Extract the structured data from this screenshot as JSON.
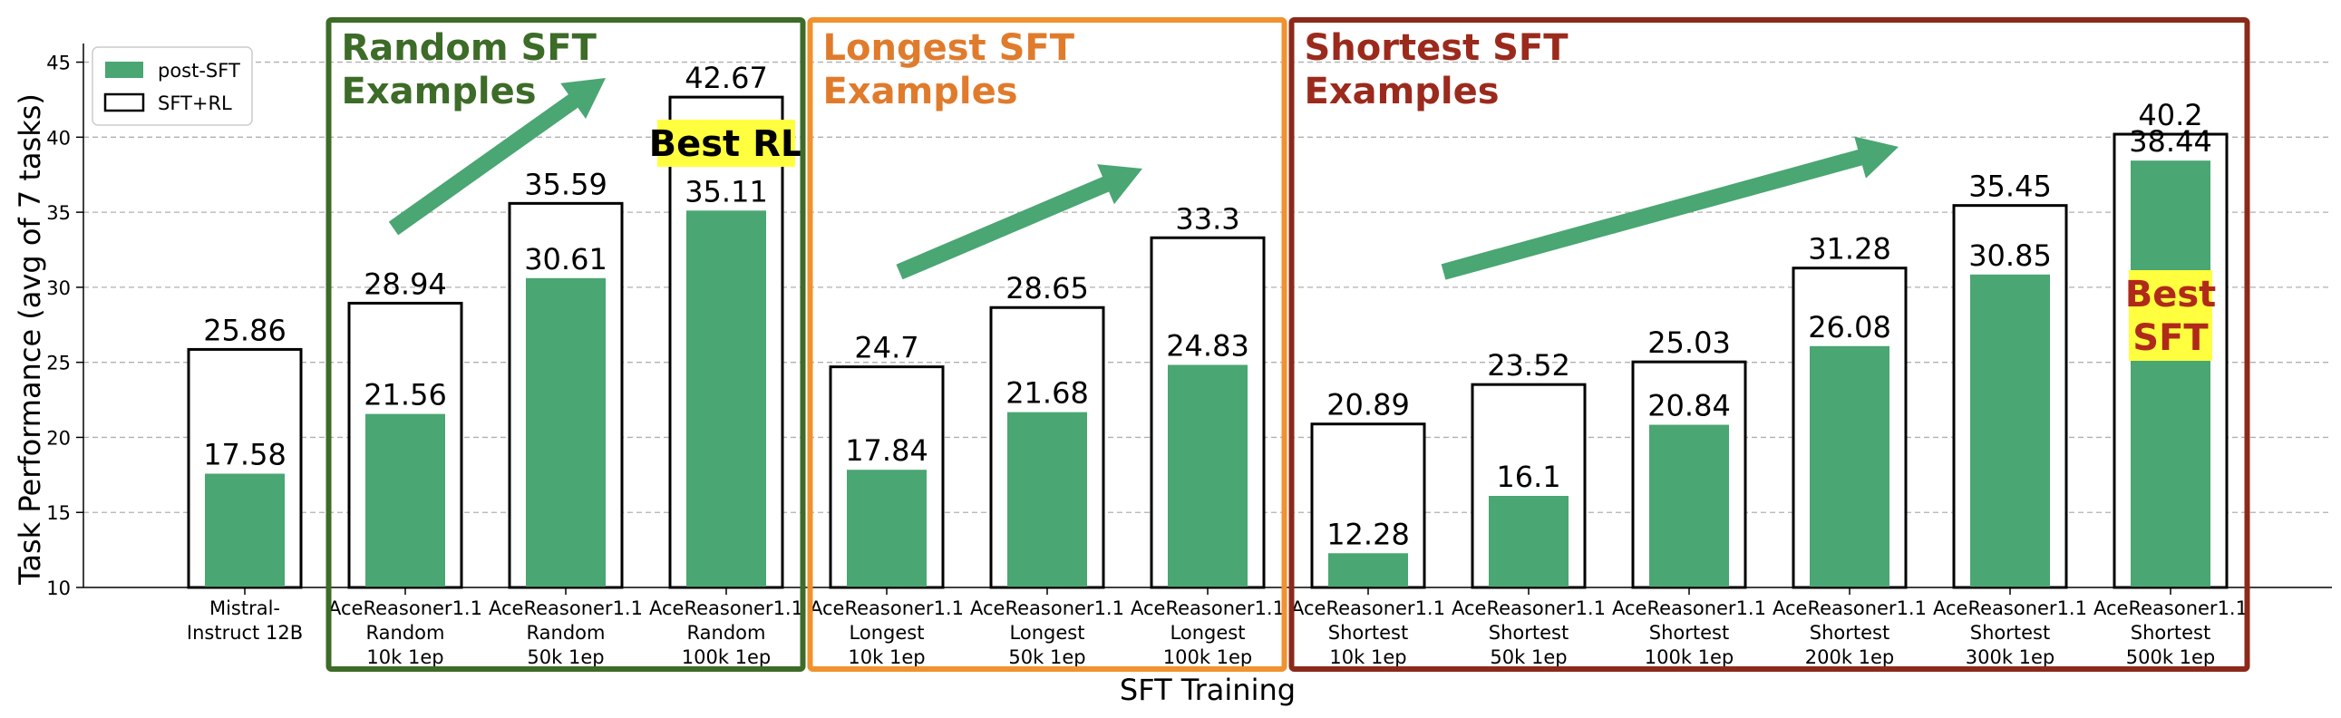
{
  "chart_data": {
    "type": "bar",
    "xlabel": "SFT Training",
    "ylabel": "Task Performance (avg of 7 tasks)",
    "ylim": [
      10,
      46
    ],
    "yticks": [
      10,
      15,
      20,
      25,
      30,
      35,
      40,
      45
    ],
    "grid": true,
    "legend": {
      "placement": "top-left",
      "entries": [
        "post-SFT",
        "SFT+RL"
      ]
    },
    "categories": [
      [
        "Mistral-",
        "Instruct 12B"
      ],
      [
        "AceReasoner1.1",
        "Random",
        "10k 1ep"
      ],
      [
        "AceReasoner1.1",
        "Random",
        "50k 1ep"
      ],
      [
        "AceReasoner1.1",
        "Random",
        "100k 1ep"
      ],
      [
        "AceReasoner1.1",
        "Longest",
        "10k 1ep"
      ],
      [
        "AceReasoner1.1",
        "Longest",
        "50k 1ep"
      ],
      [
        "AceReasoner1.1",
        "Longest",
        "100k 1ep"
      ],
      [
        "AceReasoner1.1",
        "Shortest",
        "10k 1ep"
      ],
      [
        "AceReasoner1.1",
        "Shortest",
        "50k 1ep"
      ],
      [
        "AceReasoner1.1",
        "Shortest",
        "100k 1ep"
      ],
      [
        "AceReasoner1.1",
        "Shortest",
        "200k 1ep"
      ],
      [
        "AceReasoner1.1",
        "Shortest",
        "300k 1ep"
      ],
      [
        "AceReasoner1.1",
        "Shortest",
        "500k 1ep"
      ]
    ],
    "series": [
      {
        "name": "post-SFT",
        "color": "#4aa672",
        "values": [
          17.58,
          21.56,
          30.61,
          35.11,
          17.84,
          21.68,
          24.83,
          12.28,
          16.1,
          20.84,
          26.08,
          30.85,
          38.44
        ],
        "labels": [
          "17.58",
          "21.56",
          "30.61",
          "35.11",
          "17.84",
          "21.68",
          "24.83",
          "12.28",
          "16.1",
          "20.84",
          "26.08",
          "30.85",
          "38.44"
        ]
      },
      {
        "name": "SFT+RL",
        "color": "#000000",
        "values": [
          25.86,
          28.94,
          35.59,
          42.67,
          24.7,
          28.65,
          33.3,
          20.89,
          23.52,
          25.03,
          31.28,
          35.45,
          40.2
        ],
        "labels": [
          "25.86",
          "28.94",
          "35.59",
          "42.67",
          "24.7",
          "28.65",
          "33.3",
          "20.89",
          "23.52",
          "25.03",
          "31.28",
          "35.45",
          "40.2"
        ]
      }
    ],
    "groups": [
      {
        "title": [
          "Random SFT",
          "Examples"
        ],
        "color": "#3d6b28",
        "from": 1,
        "to": 3
      },
      {
        "title": [
          "Longest SFT",
          "Examples"
        ],
        "color": "#e07b2c",
        "border": "#f0922e",
        "from": 4,
        "to": 6
      },
      {
        "title": [
          "Shortest SFT",
          "Examples"
        ],
        "color": "#9b2a1d",
        "border": "#8b2a1a",
        "from": 7,
        "to": 12
      }
    ],
    "annotations": [
      {
        "text": "Best RL",
        "category": 3,
        "series": "SFT+RL",
        "color": "#000000",
        "highlight": "#ffff40"
      },
      {
        "text": [
          "Best",
          "SFT"
        ],
        "category": 12,
        "series": "post-SFT",
        "color": "#b02a1a",
        "highlight": "#ffff40"
      }
    ],
    "arrow_color": "#4aa672"
  }
}
